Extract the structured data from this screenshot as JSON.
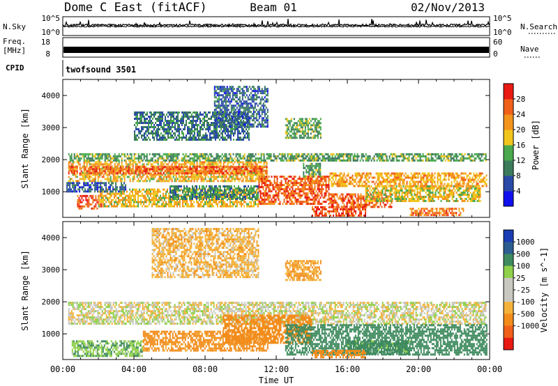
{
  "header": {
    "title": "Dome C East (fitACF)",
    "beam": "Beam 01",
    "date": "02/Nov/2013"
  },
  "noise_panel": {
    "left_label": "N.Sky",
    "left_ticks": [
      "10^5",
      "10^0"
    ],
    "right_label": "N.Search",
    "right_ticks": [
      "10^5",
      "10^0"
    ]
  },
  "freq_panel": {
    "left_label_1": "Freq.",
    "left_label_2": "[MHz]",
    "left_ticks": [
      "18",
      "8"
    ],
    "right_label": "Nave",
    "right_ticks": [
      "60",
      "0"
    ]
  },
  "cpid": {
    "label": "CPID",
    "value": "twofsound 3501"
  },
  "x_axis": {
    "title": "Time UT",
    "tick_labels": [
      "00:00",
      "04:00",
      "08:00",
      "12:00",
      "16:00",
      "20:00",
      "00:00"
    ]
  },
  "colors": {
    "power_scale": [
      "#1010ee",
      "#2a4aa8",
      "#3c7b5c",
      "#49a94c",
      "#f2c51c",
      "#f3941c",
      "#f0601a",
      "#e91a12"
    ],
    "velocity_scale": [
      "#e91a12",
      "#f0601a",
      "#f28c1a",
      "#f4b23a",
      "#c8c8c0",
      "#c8c8c0",
      "#8fd04a",
      "#3e8a5e",
      "#2c5d90",
      "#1a3db4"
    ]
  },
  "chart_data": [
    {
      "type": "heatmap",
      "title": "",
      "xlabel": "",
      "ylabel": "Slant Range [km]",
      "xlim": [
        0,
        24
      ],
      "ylim": [
        200,
        4500
      ],
      "y_tick_labels": [
        "1000",
        "2000",
        "3000",
        "4000"
      ],
      "colorbar": {
        "label": "Power [dB]",
        "tick_labels": [
          "4",
          "8",
          "12",
          "16",
          "20",
          "24",
          "28"
        ],
        "range": [
          0,
          32
        ]
      },
      "regions": [
        {
          "t": [
            0.3,
            11.5
          ],
          "r": [
            1350,
            1950
          ],
          "v": 20
        },
        {
          "t": [
            0.3,
            11.5
          ],
          "r": [
            1600,
            1800
          ],
          "v": 26
        },
        {
          "t": [
            0.3,
            23.8
          ],
          "r": [
            2000,
            2200
          ],
          "v": 13
        },
        {
          "t": [
            0.8,
            2.2
          ],
          "r": [
            450,
            900
          ],
          "v": 27
        },
        {
          "t": [
            2.0,
            11.0
          ],
          "r": [
            550,
            1100
          ],
          "v": 19
        },
        {
          "t": [
            6.0,
            11.0
          ],
          "r": [
            800,
            1200
          ],
          "v": 11
        },
        {
          "t": [
            11.0,
            15.0
          ],
          "r": [
            600,
            1500
          ],
          "v": 26
        },
        {
          "t": [
            13.5,
            14.5
          ],
          "r": [
            1500,
            1900
          ],
          "v": 13
        },
        {
          "t": [
            14.0,
            17.0
          ],
          "r": [
            250,
            550
          ],
          "v": 27
        },
        {
          "t": [
            15.0,
            18.5
          ],
          "r": [
            550,
            950
          ],
          "v": 26
        },
        {
          "t": [
            15.0,
            23.8
          ],
          "r": [
            1200,
            1600
          ],
          "v": 21
        },
        {
          "t": [
            17.0,
            23.5
          ],
          "r": [
            700,
            1200
          ],
          "v": 18
        },
        {
          "t": [
            19.5,
            22.5
          ],
          "r": [
            250,
            500
          ],
          "v": 24
        },
        {
          "t": [
            4.0,
            10.5
          ],
          "r": [
            2600,
            3500
          ],
          "v": 9
        },
        {
          "t": [
            8.5,
            11.5
          ],
          "r": [
            3000,
            4300
          ],
          "v": 8
        },
        {
          "t": [
            12.5,
            14.5
          ],
          "r": [
            2700,
            3300
          ],
          "v": 13
        },
        {
          "t": [
            0.2,
            3.5
          ],
          "r": [
            1000,
            1300
          ],
          "v": 7
        }
      ]
    },
    {
      "type": "heatmap",
      "title": "",
      "xlabel": "Time UT",
      "ylabel": "Slant Range [km]",
      "xlim": [
        0,
        24
      ],
      "ylim": [
        200,
        4500
      ],
      "y_tick_labels": [
        "1000",
        "2000",
        "3000",
        "4000"
      ],
      "colorbar": {
        "label": "Velocity [m s^-1]",
        "tick_labels": [
          "1000",
          "500",
          "100",
          "25",
          "-25",
          "-100",
          "-500",
          "-1000"
        ]
      },
      "regions": [
        {
          "t": [
            0.3,
            23.8
          ],
          "r": [
            1300,
            2000
          ],
          "v": 0
        },
        {
          "t": [
            0.5,
            4.5
          ],
          "r": [
            300,
            800
          ],
          "v": 80
        },
        {
          "t": [
            4.5,
            11.5
          ],
          "r": [
            450,
            1100
          ],
          "v": -150
        },
        {
          "t": [
            9.0,
            14.0
          ],
          "r": [
            700,
            1600
          ],
          "v": -200
        },
        {
          "t": [
            12.5,
            23.8
          ],
          "r": [
            350,
            1300
          ],
          "v": 300
        },
        {
          "t": [
            16.0,
            19.5
          ],
          "r": [
            350,
            800
          ],
          "v": 150
        },
        {
          "t": [
            5.0,
            11.0
          ],
          "r": [
            2800,
            4300
          ],
          "v": -60
        },
        {
          "t": [
            12.5,
            14.5
          ],
          "r": [
            2700,
            3300
          ],
          "v": -100
        },
        {
          "t": [
            14.0,
            17.0
          ],
          "r": [
            250,
            500
          ],
          "v": -200
        }
      ]
    }
  ]
}
